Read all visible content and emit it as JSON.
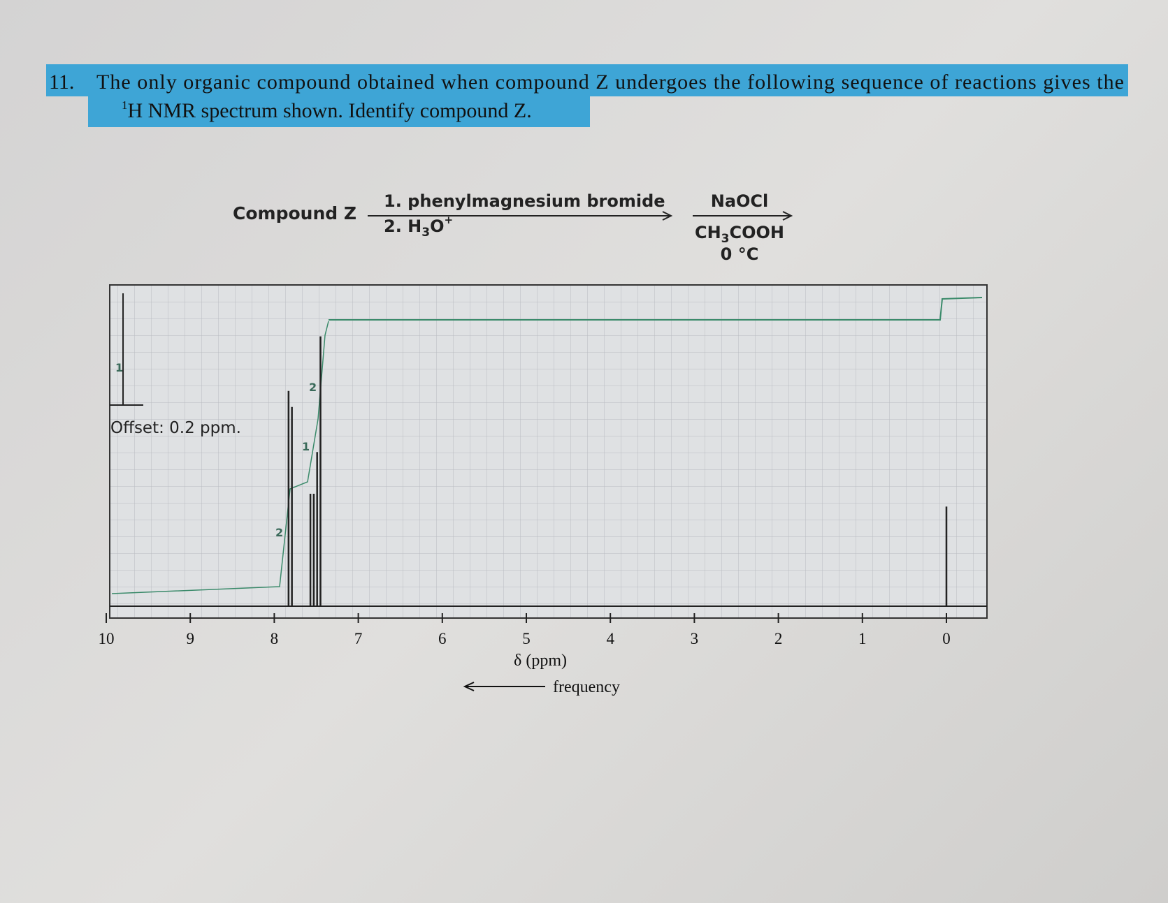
{
  "question": {
    "number": "11.",
    "text_before": "The only organic compound obtained when compound Z undergoes the following sequence of reactions gives the",
    "superscript": "1",
    "text_after": "H NMR spectrum shown. Identify compound Z."
  },
  "reaction": {
    "start": "Compound Z",
    "step1_above": "1. phenylmagnesium bromide",
    "step1_below": {
      "a": "2. H",
      "sub": "3",
      "b": "O",
      "sup": "+"
    },
    "step2_above": "NaOCl",
    "step2_below": {
      "a": "CH",
      "sub": "3",
      "b": "COOH"
    },
    "step2_temp": "0 °C"
  },
  "spectrum": {
    "xlabel": "δ (ppm)",
    "direction_label": "frequency",
    "offset_note": "Offset: 0.2 ppm.",
    "xlim": [
      10,
      0
    ],
    "xticks": [
      10,
      9,
      8,
      7,
      6,
      5,
      4,
      3,
      2,
      1,
      0
    ],
    "ylim": [
      0,
      1
    ],
    "peaks_ppm": [
      7.83,
      7.79,
      7.57,
      7.53,
      7.49,
      7.45,
      0
    ],
    "peak_heights": [
      0.67,
      0.62,
      0.35,
      0.35,
      0.48,
      0.84,
      0.31
    ],
    "offset_peak_ppm": 9.8,
    "offset_peak_height": 0.35,
    "integrations": [
      "1",
      "2",
      "1",
      "2"
    ]
  }
}
